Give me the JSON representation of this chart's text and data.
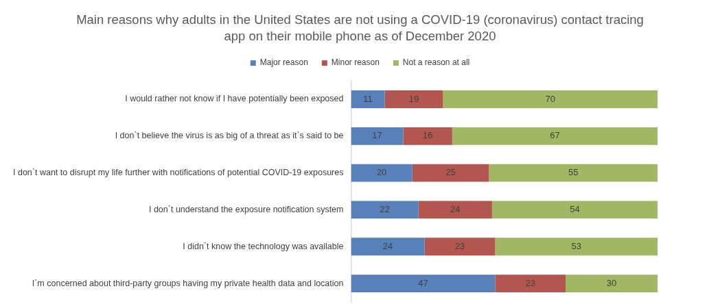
{
  "chart_data": {
    "type": "bar",
    "orientation": "horizontal",
    "stacked": true,
    "title": "Main reasons why adults in the United States are not using a COVID-19 (coronavirus) contact tracing app on their mobile phone as of December 2020",
    "categories": [
      "I would rather not know if I have potentially been exposed",
      "I don`t believe the virus is as big of a threat as it`s said to be",
      "I don`t want to disrupt my life further with notifications of potential COVID-19 exposures",
      "I don`t understand the exposure notification system",
      "I didn`t know the technology was available",
      "I`m concerned about third-party groups having my private health data and location"
    ],
    "series": [
      {
        "name": "Major reason",
        "color": "#5881b9",
        "values": [
          11,
          17,
          20,
          22,
          24,
          47
        ]
      },
      {
        "name": "Minor reason",
        "color": "#b3564f",
        "values": [
          19,
          16,
          25,
          24,
          23,
          23
        ]
      },
      {
        "name": "Not a reason at all",
        "color": "#a0b864",
        "values": [
          70,
          67,
          55,
          54,
          53,
          30
        ]
      }
    ],
    "legend": "top",
    "data_labels": true
  }
}
